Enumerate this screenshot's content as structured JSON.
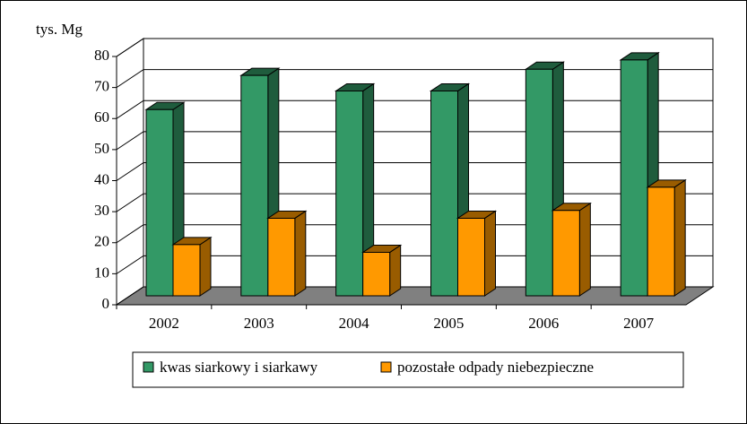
{
  "chart_data": {
    "type": "bar3d",
    "y_label": "tys. Mg",
    "categories": [
      "2002",
      "2003",
      "2004",
      "2005",
      "2006",
      "2007"
    ],
    "series": [
      {
        "name": "kwas siarkowy i siarkawy",
        "color": "#339966",
        "values": [
          60,
          71,
          66,
          66,
          73,
          76
        ]
      },
      {
        "name": "pozostałe odpady niebezpieczne",
        "color": "#ff9900",
        "values": [
          16.5,
          25,
          14,
          25,
          27.5,
          35
        ]
      }
    ],
    "ylim": [
      0,
      80
    ],
    "yticks": [
      0,
      10,
      20,
      30,
      40,
      50,
      60,
      70,
      80
    ],
    "grid": true
  }
}
